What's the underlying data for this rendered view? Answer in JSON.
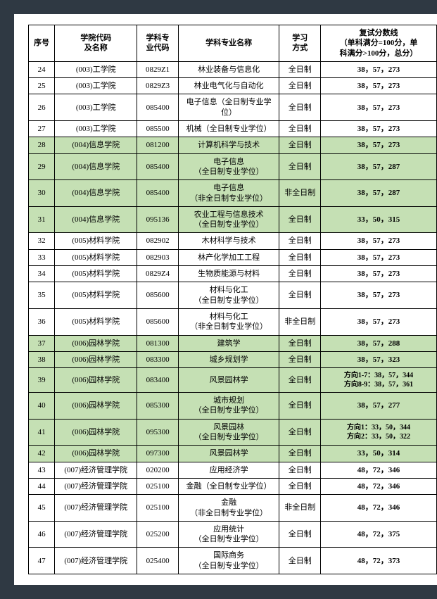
{
  "headers": {
    "seq": "序号",
    "college": "学院代码\n及名称",
    "code": "学科专\n业代码",
    "major": "学科专业名称",
    "mode": "学习\n方式",
    "score": "复试分数线\n（单科满分=100分，单\n科满分>100分，总分）"
  },
  "colors": {
    "highlight": "#c5e0b4",
    "border": "#000000",
    "background": "#ffffff",
    "page_bg": "#2f3943"
  },
  "rows": [
    {
      "seq": "24",
      "college": "(003)工学院",
      "code": "0829Z1",
      "major": "林业装备与信息化",
      "mode": "全日制",
      "score": "38，57，273",
      "hl": false
    },
    {
      "seq": "25",
      "college": "(003)工学院",
      "code": "0829Z3",
      "major": "林业电气化与自动化",
      "mode": "全日制",
      "score": "38，57，273",
      "hl": false
    },
    {
      "seq": "26",
      "college": "(003)工学院",
      "code": "085400",
      "major": "电子信息（全日制专业学\n位）",
      "mode": "全日制",
      "score": "38，57，273",
      "hl": false
    },
    {
      "seq": "27",
      "college": "(003)工学院",
      "code": "085500",
      "major": "机械（全日制专业学位）",
      "mode": "全日制",
      "score": "38，57，273",
      "hl": false
    },
    {
      "seq": "28",
      "college": "(004)信息学院",
      "code": "081200",
      "major": "计算机科学与技术",
      "mode": "全日制",
      "score": "38，57，273",
      "hl": true
    },
    {
      "seq": "29",
      "college": "(004)信息学院",
      "code": "085400",
      "major": "电子信息\n（全日制专业学位）",
      "mode": "全日制",
      "score": "38，57，287",
      "hl": true
    },
    {
      "seq": "30",
      "college": "(004)信息学院",
      "code": "085400",
      "major": "电子信息\n（非全日制专业学位）",
      "mode": "非全日制",
      "score": "38，57，287",
      "hl": true
    },
    {
      "seq": "31",
      "college": "(004)信息学院",
      "code": "095136",
      "major": "农业工程与信息技术\n（全日制专业学位）",
      "mode": "全日制",
      "score": "33，50，315",
      "hl": true
    },
    {
      "seq": "32",
      "college": "(005)材料学院",
      "code": "082902",
      "major": "木材科学与技术",
      "mode": "全日制",
      "score": "38，57，273",
      "hl": false
    },
    {
      "seq": "33",
      "college": "(005)材料学院",
      "code": "082903",
      "major": "林产化学加工工程",
      "mode": "全日制",
      "score": "38，57，273",
      "hl": false
    },
    {
      "seq": "34",
      "college": "(005)材料学院",
      "code": "0829Z4",
      "major": "生物质能源与材料",
      "mode": "全日制",
      "score": "38，57，273",
      "hl": false
    },
    {
      "seq": "35",
      "college": "(005)材料学院",
      "code": "085600",
      "major": "材料与化工\n（全日制专业学位）",
      "mode": "全日制",
      "score": "38，57，273",
      "hl": false
    },
    {
      "seq": "36",
      "college": "(005)材料学院",
      "code": "085600",
      "major": "材料与化工\n（非全日制专业学位）",
      "mode": "非全日制",
      "score": "38，57，273",
      "hl": false
    },
    {
      "seq": "37",
      "college": "(006)园林学院",
      "code": "081300",
      "major": "建筑学",
      "mode": "全日制",
      "score": "38，57，288",
      "hl": true
    },
    {
      "seq": "38",
      "college": "(006)园林学院",
      "code": "083300",
      "major": "城乡规划学",
      "mode": "全日制",
      "score": "38，57，323",
      "hl": true
    },
    {
      "seq": "39",
      "college": "(006)园林学院",
      "code": "083400",
      "major": "风景园林学",
      "mode": "全日制",
      "score": "方向1-7：38，57，344\n方向8-9：38，57，361",
      "hl": true,
      "multi": true
    },
    {
      "seq": "40",
      "college": "(006)园林学院",
      "code": "085300",
      "major": "城市规划\n（全日制专业学位）",
      "mode": "全日制",
      "score": "38，57，277",
      "hl": true
    },
    {
      "seq": "41",
      "college": "(006)园林学院",
      "code": "095300",
      "major": "风景园林\n（全日制专业学位）",
      "mode": "全日制",
      "score": "方向1：33，50，344\n方向2：33，50，322",
      "hl": true,
      "multi": true
    },
    {
      "seq": "42",
      "college": "(006)园林学院",
      "code": "097300",
      "major": "风景园林学",
      "mode": "全日制",
      "score": "33，50，314",
      "hl": true
    },
    {
      "seq": "43",
      "college": "(007)经济管理学院",
      "code": "020200",
      "major": "应用经济学",
      "mode": "全日制",
      "score": "48，72，346",
      "hl": false
    },
    {
      "seq": "44",
      "college": "(007)经济管理学院",
      "code": "025100",
      "major": "金融（全日制专业学位）",
      "mode": "全日制",
      "score": "48，72，346",
      "hl": false
    },
    {
      "seq": "45",
      "college": "(007)经济管理学院",
      "code": "025100",
      "major": "金融\n（非全日制专业学位）",
      "mode": "非全日制",
      "score": "48，72，346",
      "hl": false
    },
    {
      "seq": "46",
      "college": "(007)经济管理学院",
      "code": "025200",
      "major": "应用统计\n（全日制专业学位）",
      "mode": "全日制",
      "score": "48，72，375",
      "hl": false
    },
    {
      "seq": "47",
      "college": "(007)经济管理学院",
      "code": "025400",
      "major": "国际商务\n（全日制专业学位）",
      "mode": "全日制",
      "score": "48，72，373",
      "hl": false
    }
  ]
}
